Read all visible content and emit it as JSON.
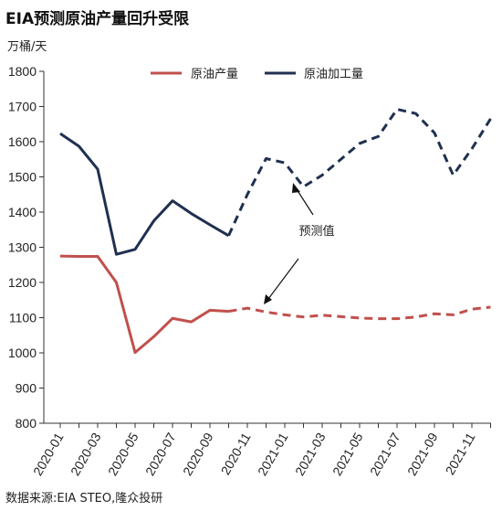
{
  "title": "EIA预测原油产量回升受限",
  "unit_label": "万桶/天",
  "source": "数据来源:EIA STEO,隆众投研",
  "chart_data": {
    "type": "line",
    "ylim": [
      800,
      1800
    ],
    "yticks": [
      800,
      900,
      1000,
      1100,
      1200,
      1300,
      1400,
      1500,
      1600,
      1700,
      1800
    ],
    "x": [
      "2020-01",
      "2020-02",
      "2020-03",
      "2020-04",
      "2020-05",
      "2020-06",
      "2020-07",
      "2020-08",
      "2020-09",
      "2020-10",
      "2020-11",
      "2020-12",
      "2021-01",
      "2021-02",
      "2021-03",
      "2021-04",
      "2021-05",
      "2021-06",
      "2021-07",
      "2021-08",
      "2021-09",
      "2021-10",
      "2021-11",
      "2021-12"
    ],
    "xtick_labels": [
      "2020-01",
      "2020-03",
      "2020-05",
      "2020-07",
      "2020-09",
      "2020-11",
      "2021-01",
      "2021-03",
      "2021-05",
      "2021-07",
      "2021-09",
      "2021-11"
    ],
    "forecast_start_index": 9,
    "legend_position": "top",
    "grid": false,
    "series": [
      {
        "name": "原油产量",
        "color": "#c0504d",
        "values": [
          1275,
          1274,
          1274,
          1200,
          1001,
          1046,
          1098,
          1088,
          1121,
          1118,
          1127,
          1116,
          1108,
          1102,
          1107,
          1103,
          1099,
          1097,
          1097,
          1102,
          1111,
          1108,
          1124,
          1130
        ]
      },
      {
        "name": "原油加工量",
        "color": "#1f3050",
        "values": [
          1623,
          1587,
          1522,
          1280,
          1294,
          1375,
          1432,
          1396,
          1364,
          1333,
          1450,
          1552,
          1540,
          1472,
          1505,
          1550,
          1595,
          1615,
          1692,
          1680,
          1625,
          1505,
          1580,
          1665
        ]
      }
    ],
    "annotation": {
      "text": "预测值"
    }
  }
}
